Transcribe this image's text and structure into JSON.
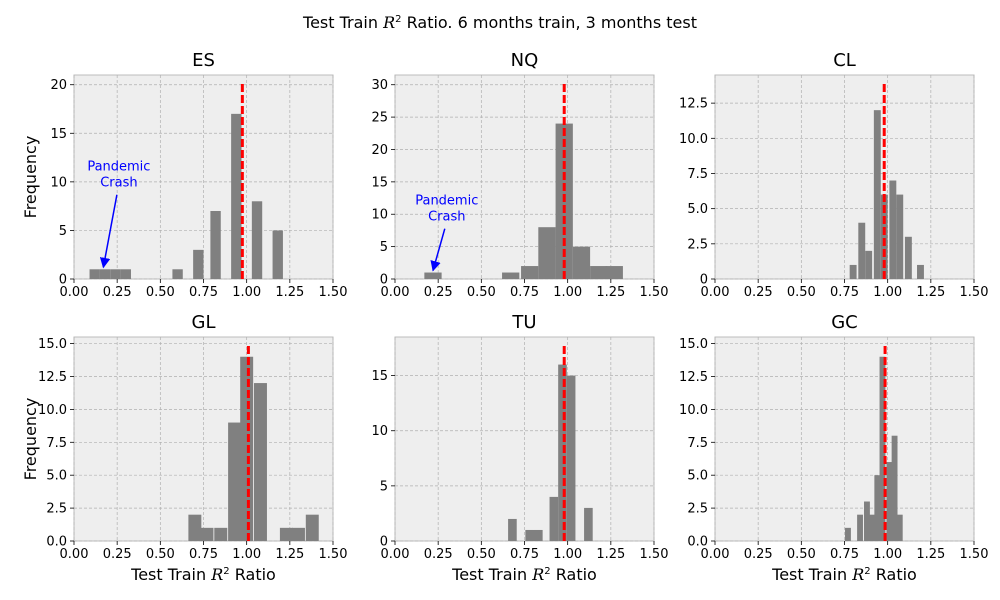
{
  "figure": {
    "title_prefix": "Test Train ",
    "title_math": "R",
    "title_sup": "2",
    "title_suffix": " Ratio.  6 months train, 3 months test"
  },
  "chart_data": [
    {
      "type": "bar",
      "title": "ES",
      "xlabel": "",
      "ylabel": "Frequency",
      "xlim": [
        0,
        1.5
      ],
      "ylim": [
        0,
        21
      ],
      "xticks": [
        "0.00",
        "0.25",
        "0.50",
        "0.75",
        "1.00",
        "1.25",
        "1.50"
      ],
      "yticks": [
        "0",
        "5",
        "10",
        "15",
        "20"
      ],
      "yticks_values": [
        0,
        5,
        10,
        15,
        20
      ],
      "bar_width": 0.06,
      "bars": [
        [
          0.12,
          1
        ],
        [
          0.18,
          1
        ],
        [
          0.24,
          1
        ],
        [
          0.3,
          1
        ],
        [
          0.6,
          1
        ],
        [
          0.72,
          3
        ],
        [
          0.82,
          7
        ],
        [
          0.94,
          17
        ],
        [
          1.06,
          8
        ],
        [
          1.18,
          5
        ]
      ],
      "vline": 0.975,
      "annotation": {
        "text_lines": [
          "Pandemic",
          "Crash"
        ],
        "text_at": [
          0.26,
          9.5
        ],
        "arrow_to": [
          0.17,
          1.0
        ]
      },
      "color": "#808080",
      "vline_color": "#ff0000",
      "grid": true
    },
    {
      "type": "bar",
      "title": "NQ",
      "xlabel": "",
      "ylabel": "",
      "xlim": [
        0,
        1.5
      ],
      "ylim": [
        0,
        31.5
      ],
      "xticks": [
        "0.00",
        "0.25",
        "0.50",
        "0.75",
        "1.00",
        "1.25",
        "1.50"
      ],
      "yticks": [
        "0",
        "5",
        "10",
        "15",
        "20",
        "25",
        "30"
      ],
      "yticks_values": [
        0,
        5,
        10,
        15,
        20,
        25,
        30
      ],
      "bar_width": 0.1,
      "bars": [
        [
          0.22,
          1
        ],
        [
          0.67,
          1
        ],
        [
          0.78,
          2
        ],
        [
          0.88,
          8
        ],
        [
          0.98,
          24
        ],
        [
          1.08,
          5
        ],
        [
          1.18,
          2
        ],
        [
          1.27,
          2
        ]
      ],
      "vline": 0.98,
      "annotation": {
        "text_lines": [
          "Pandemic",
          "Crash"
        ],
        "text_at": [
          0.3,
          9.0
        ],
        "arrow_to": [
          0.22,
          1.0
        ]
      },
      "color": "#808080",
      "vline_color": "#ff0000",
      "grid": true
    },
    {
      "type": "bar",
      "title": "CL",
      "xlabel": "",
      "ylabel": "",
      "xlim": [
        0,
        1.5
      ],
      "ylim": [
        0,
        14.5
      ],
      "xticks": [
        "0.00",
        "0.25",
        "0.50",
        "0.75",
        "1.00",
        "1.25",
        "1.50"
      ],
      "yticks": [
        "0",
        "2.5",
        "5.0",
        "7.5",
        "10.0",
        "12.5"
      ],
      "yticks_values": [
        0,
        2.5,
        5,
        7.5,
        10,
        12.5
      ],
      "bar_width": 0.04,
      "bars": [
        [
          0.8,
          1
        ],
        [
          0.85,
          4
        ],
        [
          0.89,
          2
        ],
        [
          0.94,
          12
        ],
        [
          0.98,
          6
        ],
        [
          1.03,
          7
        ],
        [
          1.07,
          6
        ],
        [
          1.12,
          3
        ],
        [
          1.19,
          1
        ]
      ],
      "vline": 0.98,
      "annotation": null,
      "color": "#808080",
      "vline_color": "#ff0000",
      "grid": true
    },
    {
      "type": "bar",
      "title": "GL",
      "xlabel": "Test Train R² Ratio",
      "ylabel": "Frequency",
      "xlim": [
        0,
        1.5
      ],
      "ylim": [
        0,
        15.5
      ],
      "xticks": [
        "0.00",
        "0.25",
        "0.50",
        "0.75",
        "1.00",
        "1.25",
        "1.50"
      ],
      "yticks": [
        "0.0",
        "2.5",
        "5.0",
        "7.5",
        "10.0",
        "12.5",
        "15.0"
      ],
      "yticks_values": [
        0,
        2.5,
        5,
        7.5,
        10,
        12.5,
        15
      ],
      "bar_width": 0.075,
      "bars": [
        [
          0.7,
          2
        ],
        [
          0.77,
          1
        ],
        [
          0.85,
          1
        ],
        [
          0.93,
          9
        ],
        [
          1.0,
          14
        ],
        [
          1.08,
          12
        ],
        [
          1.23,
          1
        ],
        [
          1.3,
          1
        ],
        [
          1.38,
          2
        ]
      ],
      "vline": 1.01,
      "annotation": null,
      "color": "#808080",
      "vline_color": "#ff0000",
      "grid": true
    },
    {
      "type": "bar",
      "title": "TU",
      "xlabel": "Test Train R² Ratio",
      "ylabel": "",
      "xlim": [
        0,
        1.5
      ],
      "ylim": [
        0,
        18.5
      ],
      "xticks": [
        "0.00",
        "0.25",
        "0.50",
        "0.75",
        "1.00",
        "1.25",
        "1.50"
      ],
      "yticks": [
        "0",
        "5",
        "10",
        "15"
      ],
      "yticks_values": [
        0,
        5,
        10,
        15
      ],
      "bar_width": 0.05,
      "bars": [
        [
          0.68,
          2
        ],
        [
          0.78,
          1
        ],
        [
          0.83,
          1
        ],
        [
          0.92,
          4
        ],
        [
          0.97,
          16
        ],
        [
          1.02,
          15
        ],
        [
          1.12,
          3
        ]
      ],
      "vline": 0.98,
      "annotation": null,
      "color": "#808080",
      "vline_color": "#ff0000",
      "grid": true
    },
    {
      "type": "bar",
      "title": "GC",
      "xlabel": "Test Train R² Ratio",
      "ylabel": "",
      "xlim": [
        0,
        1.5
      ],
      "ylim": [
        0,
        15.5
      ],
      "xticks": [
        "0.00",
        "0.25",
        "0.50",
        "0.75",
        "1.00",
        "1.25",
        "1.50"
      ],
      "yticks": [
        "0.0",
        "2.5",
        "5.0",
        "7.5",
        "10.0",
        "12.5",
        "15.0"
      ],
      "yticks_values": [
        0,
        2.5,
        5,
        7.5,
        10,
        12.5,
        15
      ],
      "bar_width": 0.034,
      "bars": [
        [
          0.77,
          1
        ],
        [
          0.84,
          2
        ],
        [
          0.88,
          3
        ],
        [
          0.91,
          2
        ],
        [
          0.94,
          5
        ],
        [
          0.97,
          14
        ],
        [
          1.01,
          6
        ],
        [
          1.04,
          8
        ],
        [
          1.07,
          2
        ]
      ],
      "vline": 0.985,
      "annotation": null,
      "color": "#808080",
      "vline_color": "#ff0000",
      "grid": true
    }
  ]
}
